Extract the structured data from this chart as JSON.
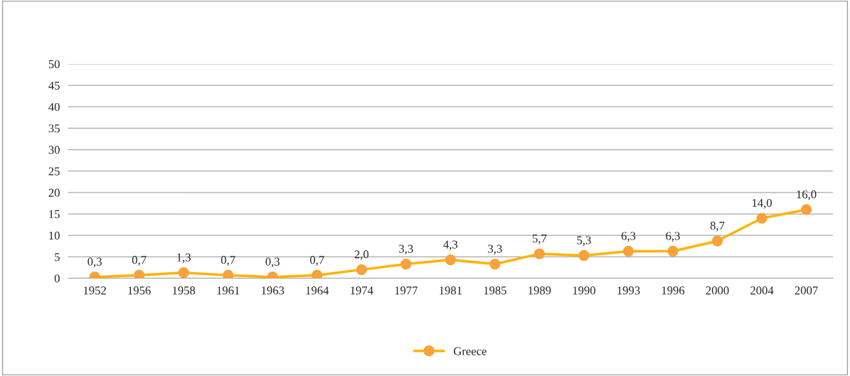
{
  "chart_data": {
    "type": "line",
    "categories": [
      "1952",
      "1956",
      "1958",
      "1961",
      "1963",
      "1964",
      "1974",
      "1977",
      "1981",
      "1985",
      "1989",
      "1990",
      "1993",
      "1996",
      "2000",
      "2004",
      "2007"
    ],
    "series": [
      {
        "name": "Greece",
        "color": "#ffb300",
        "values": [
          0.3,
          0.7,
          1.3,
          0.7,
          0.3,
          0.7,
          2.0,
          3.3,
          4.3,
          3.3,
          5.7,
          5.3,
          6.3,
          6.3,
          8.7,
          14.0,
          16.0
        ],
        "value_labels": [
          "0,3",
          "0,7",
          "1,3",
          "0,7",
          "0,3",
          "0,7",
          "2,0",
          "3,3",
          "4,3",
          "3,3",
          "5,7",
          "5,3",
          "6,3",
          "6,3",
          "8,7",
          "14,0",
          "16,0"
        ]
      }
    ],
    "ylim": [
      0,
      50
    ],
    "yticks": [
      0,
      5,
      10,
      15,
      20,
      25,
      30,
      35,
      40,
      45,
      50
    ],
    "grid": "y",
    "legend": "bottom",
    "marker": "circle",
    "line_style": "solid"
  }
}
